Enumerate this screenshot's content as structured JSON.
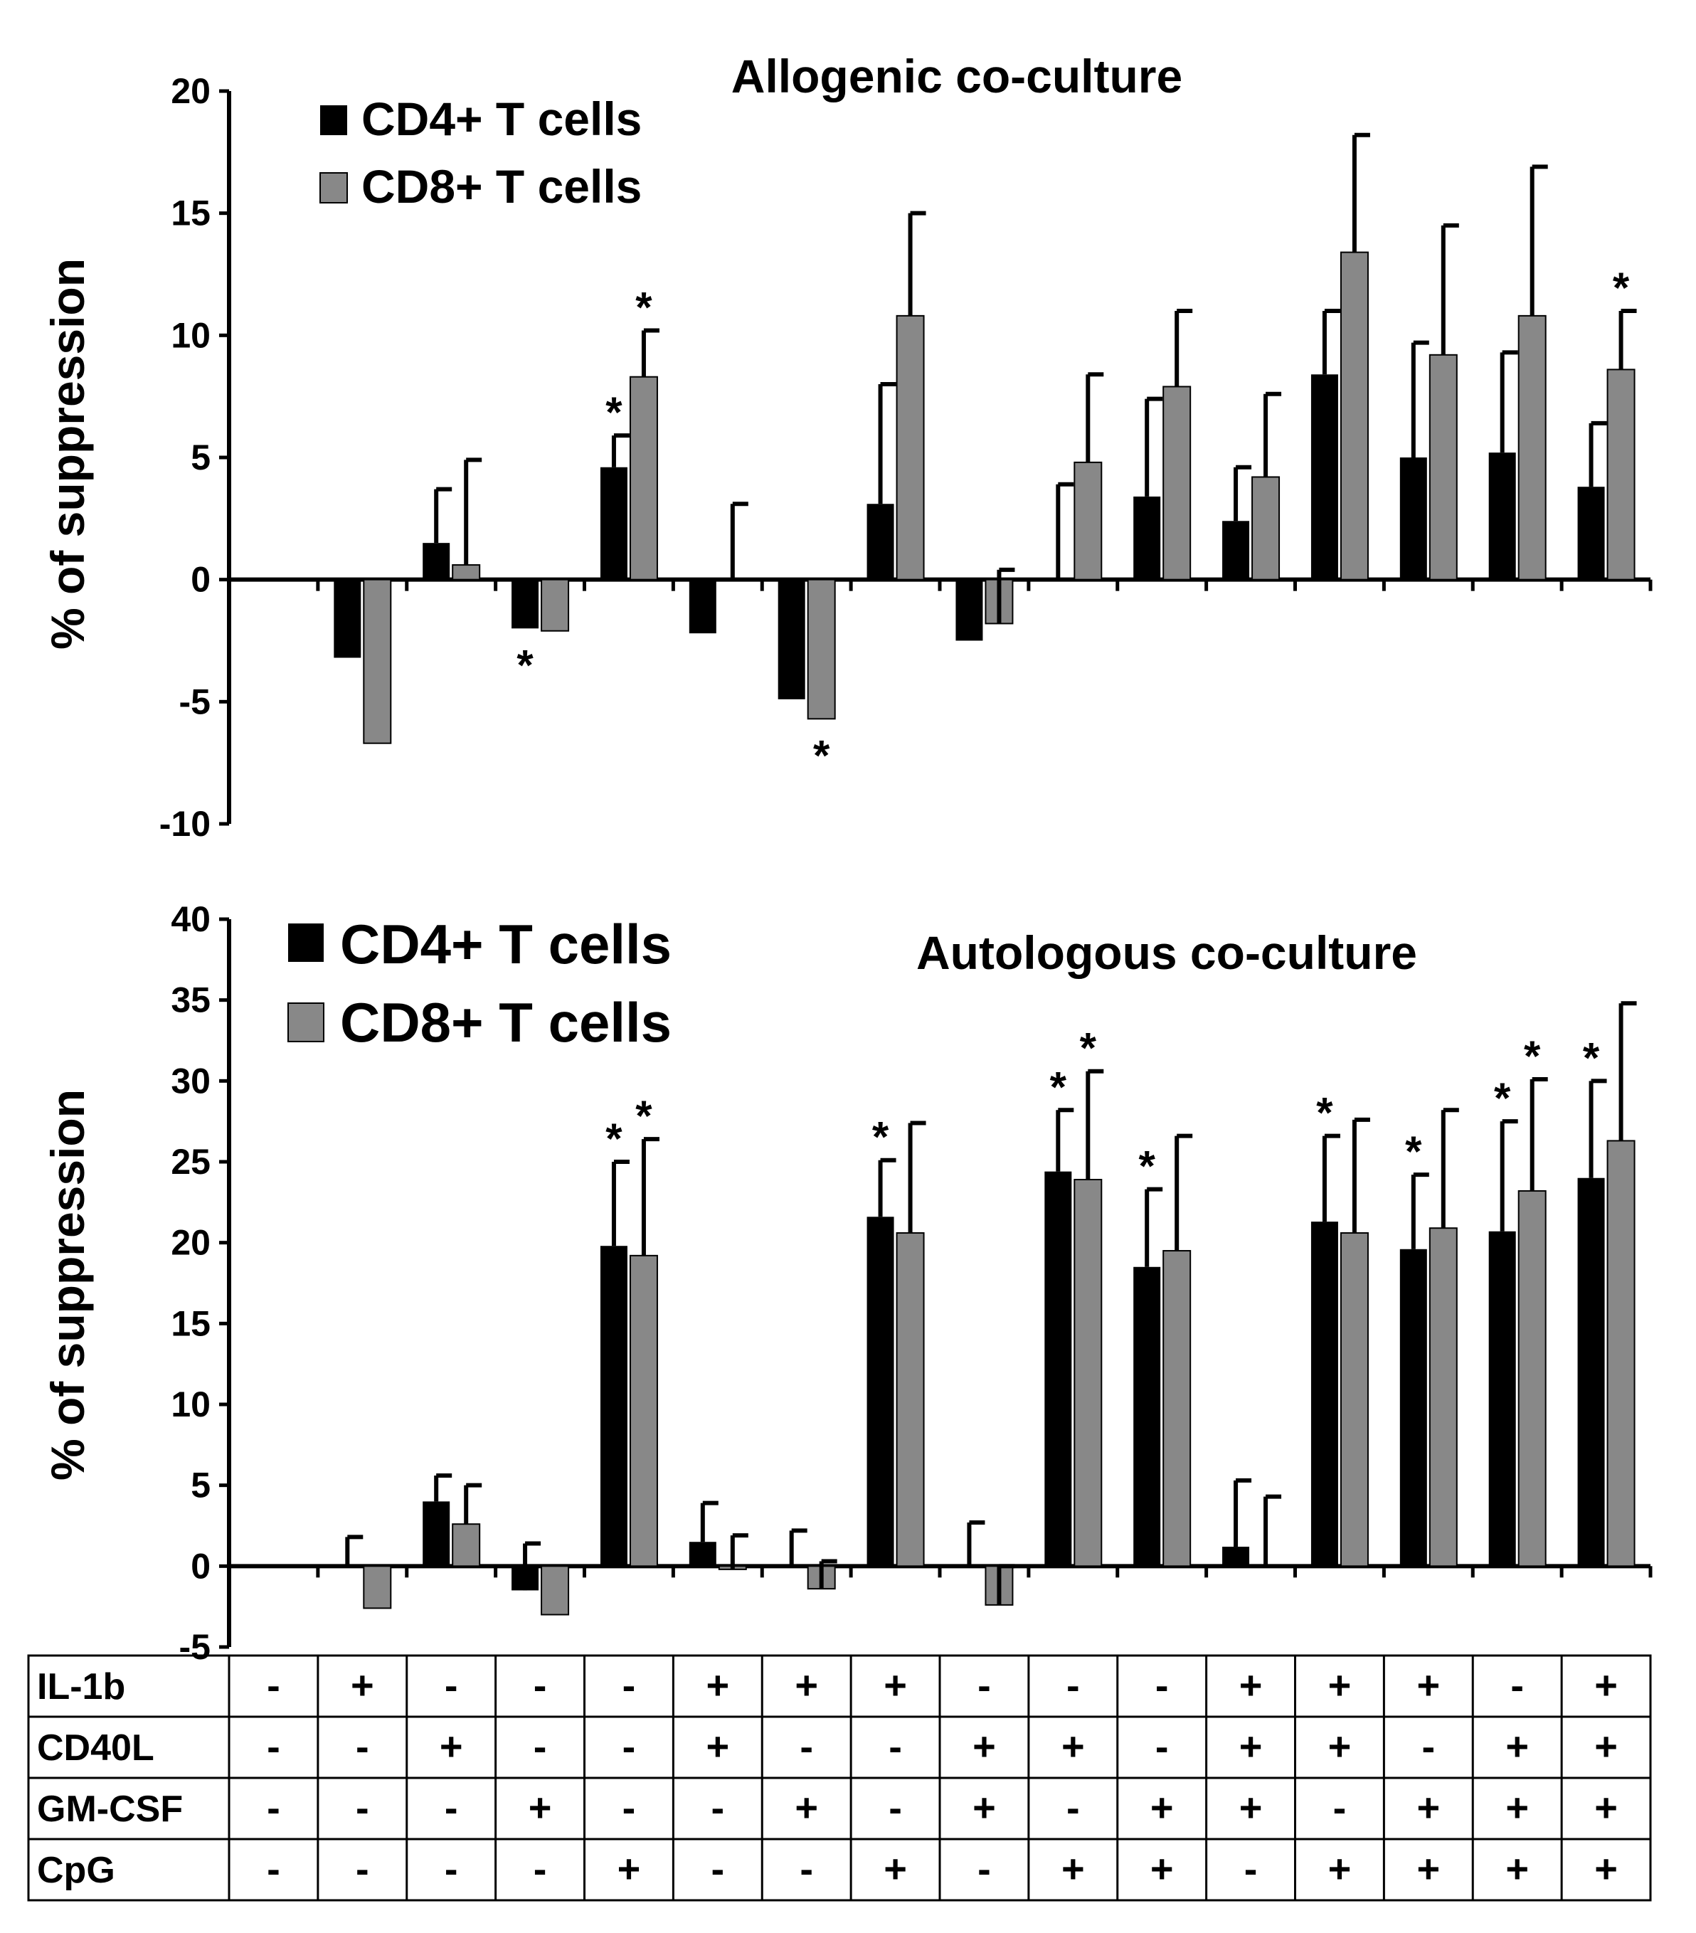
{
  "chart_data": [
    {
      "id": "allogenic",
      "type": "bar",
      "title": "Allogenic co-culture",
      "ylabel": "% of suppression",
      "xlabel": "",
      "ylim": [
        -10,
        20
      ],
      "yticks": [
        20,
        15,
        10,
        5,
        0,
        -5,
        -10
      ],
      "tick_labels": [
        "20",
        "15",
        "10",
        "5",
        "0",
        "-5",
        "-10"
      ],
      "legend_position": "top-left",
      "series": [
        {
          "name": "CD4+ T cells",
          "color": "#000000",
          "values": [
            0,
            -3.2,
            1.5,
            -2.0,
            4.6,
            -2.2,
            -4.9,
            3.1,
            -2.5,
            0,
            3.4,
            2.4,
            8.4,
            5.0,
            5.2,
            3.8
          ],
          "errors": [
            0,
            0,
            2.2,
            0,
            1.3,
            0,
            0,
            4.9,
            0,
            3.9,
            4.0,
            2.2,
            2.6,
            4.7,
            4.1,
            2.6
          ],
          "significant": [
            false,
            false,
            false,
            true,
            true,
            false,
            false,
            false,
            false,
            false,
            false,
            false,
            false,
            false,
            false,
            false
          ]
        },
        {
          "name": "CD8+ T cells",
          "color": "#888888",
          "values": [
            0,
            -6.7,
            0.6,
            -2.1,
            8.3,
            0,
            -5.7,
            10.8,
            -1.8,
            4.8,
            7.9,
            4.2,
            13.4,
            9.2,
            10.8,
            8.6
          ],
          "errors": [
            0,
            0,
            4.3,
            0,
            1.9,
            3.1,
            0,
            4.2,
            2.2,
            3.6,
            3.1,
            3.4,
            4.8,
            5.3,
            6.1,
            2.4
          ],
          "significant": [
            false,
            false,
            false,
            false,
            true,
            false,
            true,
            false,
            false,
            false,
            false,
            false,
            false,
            false,
            false,
            true
          ]
        }
      ]
    },
    {
      "id": "autologous",
      "type": "bar",
      "title": "Autologous co-culture",
      "ylabel": "% of suppression",
      "xlabel": "",
      "ylim": [
        -5,
        40
      ],
      "yticks": [
        40,
        35,
        30,
        25,
        20,
        15,
        10,
        5,
        0,
        -5
      ],
      "tick_labels": [
        "40",
        "35",
        "30",
        "25",
        "20",
        "15",
        "10",
        "5",
        "0",
        "-5"
      ],
      "legend_position": "top-left",
      "series": [
        {
          "name": "CD4+ T cells",
          "color": "#000000",
          "values": [
            0,
            0,
            4.0,
            -1.5,
            19.8,
            1.5,
            0,
            21.6,
            0,
            24.4,
            18.5,
            1.2,
            21.3,
            19.6,
            20.7,
            24.0
          ],
          "errors": [
            0,
            1.8,
            1.6,
            2.9,
            5.2,
            2.4,
            2.2,
            3.5,
            2.7,
            3.8,
            4.8,
            4.1,
            5.3,
            4.6,
            6.8,
            6.0
          ],
          "significant": [
            false,
            false,
            false,
            false,
            true,
            false,
            false,
            true,
            false,
            true,
            true,
            false,
            true,
            true,
            true,
            true
          ]
        },
        {
          "name": "CD8+ T cells",
          "color": "#888888",
          "values": [
            0,
            -2.6,
            2.6,
            -3.0,
            19.2,
            -0.2,
            -1.4,
            20.6,
            -2.4,
            23.9,
            19.5,
            0,
            20.6,
            20.9,
            23.2,
            26.3
          ],
          "errors": [
            0,
            0,
            2.4,
            0,
            7.2,
            2.1,
            1.7,
            6.8,
            2.4,
            6.7,
            7.1,
            4.3,
            7.0,
            7.3,
            6.9,
            8.5
          ],
          "significant": [
            false,
            false,
            false,
            false,
            true,
            false,
            false,
            false,
            false,
            true,
            false,
            false,
            false,
            false,
            true,
            false
          ]
        }
      ]
    }
  ],
  "conditions_table": {
    "rows": [
      {
        "label": "IL-1b",
        "values": [
          "-",
          "+",
          "-",
          "-",
          "-",
          "+",
          "+",
          "+",
          "-",
          "-",
          "-",
          "+",
          "+",
          "+",
          "-",
          "+"
        ]
      },
      {
        "label": "CD40L",
        "values": [
          "-",
          "-",
          "+",
          "-",
          "-",
          "+",
          "-",
          "-",
          "+",
          "+",
          "-",
          "+",
          "+",
          "-",
          "+",
          "+"
        ]
      },
      {
        "label": "GM-CSF",
        "values": [
          "-",
          "-",
          "-",
          "+",
          "-",
          "-",
          "+",
          "-",
          "+",
          "-",
          "+",
          "+",
          "-",
          "+",
          "+",
          "+"
        ]
      },
      {
        "label": "CpG",
        "values": [
          "-",
          "-",
          "-",
          "-",
          "+",
          "-",
          "-",
          "+",
          "-",
          "+",
          "+",
          "-",
          "+",
          "+",
          "+",
          "+"
        ]
      }
    ]
  },
  "significance_marker": "*"
}
